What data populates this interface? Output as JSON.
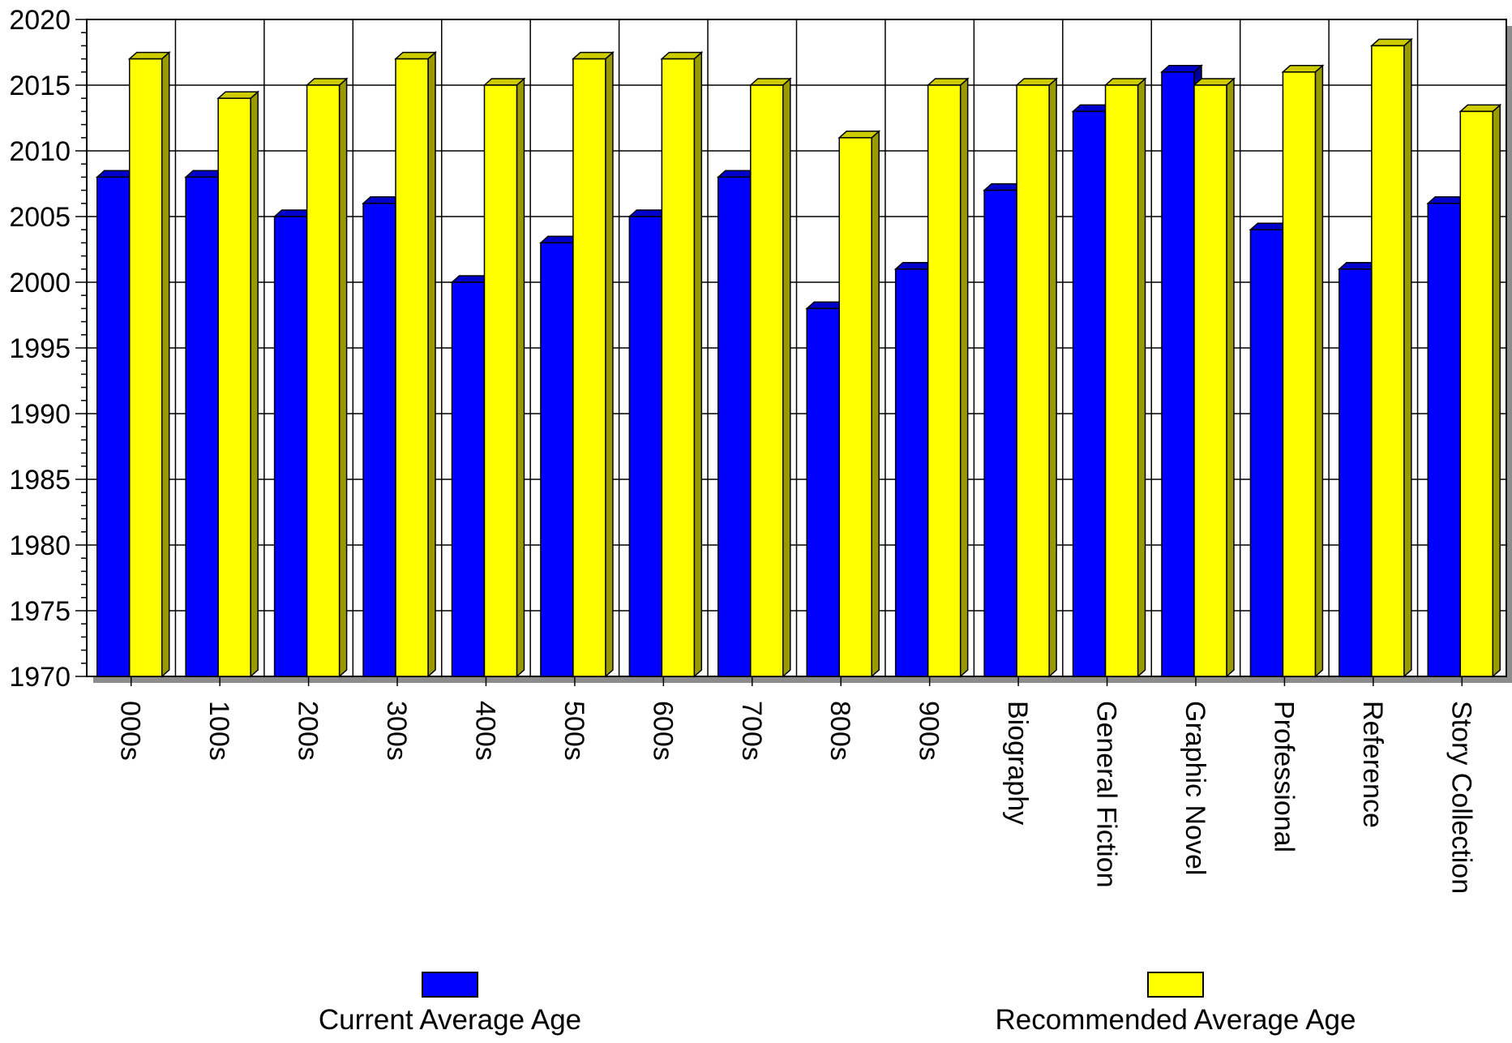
{
  "chart_data": {
    "type": "bar",
    "categories": [
      "000s",
      "100s",
      "200s",
      "300s",
      "400s",
      "500s",
      "600s",
      "700s",
      "800s",
      "900s",
      "Biography",
      "General Fiction",
      "Graphic Novel",
      "Professional",
      "Reference",
      "Story Collection"
    ],
    "series": [
      {
        "name": "Current Average Age",
        "color": "#0000ff",
        "values": [
          2008,
          2008,
          2005,
          2006,
          2000,
          2003,
          2005,
          2008,
          1998,
          2001,
          2007,
          2013,
          2016,
          2004,
          2001,
          2006
        ]
      },
      {
        "name": "Recommended Average Age",
        "color": "#ffff00",
        "values": [
          2017,
          2014,
          2015,
          2017,
          2015,
          2017,
          2017,
          2015,
          2011,
          2015,
          2015,
          2015,
          2015,
          2016,
          2018,
          2013
        ]
      }
    ],
    "yticks": [
      "1970",
      "1975",
      "1980",
      "1985",
      "1990",
      "1995",
      "2000",
      "2005",
      "2010",
      "2015",
      "2020"
    ],
    "ylim": [
      1970,
      2020
    ],
    "ystep": 5,
    "grid": true,
    "legend_position": "bottom",
    "title": "",
    "xlabel": "",
    "ylabel": ""
  }
}
